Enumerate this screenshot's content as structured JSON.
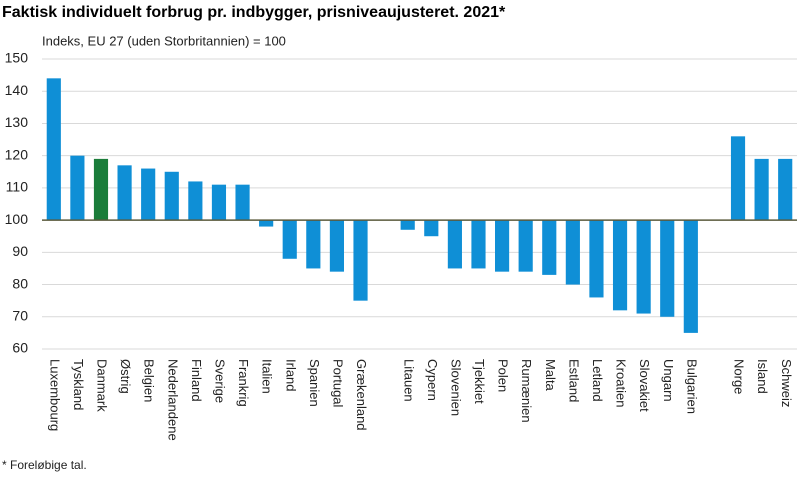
{
  "chart_data": {
    "type": "bar",
    "title": "Faktisk individuelt forbrug pr. indbygger, prisniveaujusteret. 2021*",
    "subtitle": "Indeks, EU 27 (uden Storbritannien) = 100",
    "footnote": "* Foreløbige tal.",
    "categories": [
      "Luxembourg",
      "Tyskland",
      "Danmark",
      "Østrig",
      "Belgien",
      "Nederlandene",
      "Finland",
      "Sverige",
      "Frankrig",
      "Italien",
      "Irland",
      "Spanien",
      "Portugal",
      "Grækenland",
      null,
      "Litauen",
      "Cypern",
      "Slovenien",
      "Tjekkiet",
      "Polen",
      "Rumænien",
      "Malta",
      "Estland",
      "Letland",
      "Kroatien",
      "Slovakiet",
      "Ungarn",
      "Bulgarien",
      null,
      "Norge",
      "Island",
      "Schweiz"
    ],
    "values": [
      144,
      120,
      119,
      117,
      116,
      115,
      112,
      111,
      111,
      98,
      88,
      85,
      84,
      75,
      null,
      97,
      95,
      85,
      85,
      84,
      84,
      83,
      80,
      76,
      72,
      71,
      70,
      65,
      null,
      126,
      119,
      119
    ],
    "colors": [
      "#0f8fd6",
      "#0f8fd6",
      "#1b7d3a",
      "#0f8fd6",
      "#0f8fd6",
      "#0f8fd6",
      "#0f8fd6",
      "#0f8fd6",
      "#0f8fd6",
      "#0f8fd6",
      "#0f8fd6",
      "#0f8fd6",
      "#0f8fd6",
      "#0f8fd6",
      null,
      "#0f8fd6",
      "#0f8fd6",
      "#0f8fd6",
      "#0f8fd6",
      "#0f8fd6",
      "#0f8fd6",
      "#0f8fd6",
      "#0f8fd6",
      "#0f8fd6",
      "#0f8fd6",
      "#0f8fd6",
      "#0f8fd6",
      "#0f8fd6",
      null,
      "#0f8fd6",
      "#0f8fd6",
      "#0f8fd6"
    ],
    "baseline": 100,
    "ylim": [
      60,
      150
    ],
    "yticks": [
      60,
      70,
      80,
      90,
      100,
      110,
      120,
      130,
      140,
      150
    ],
    "grid": true
  }
}
